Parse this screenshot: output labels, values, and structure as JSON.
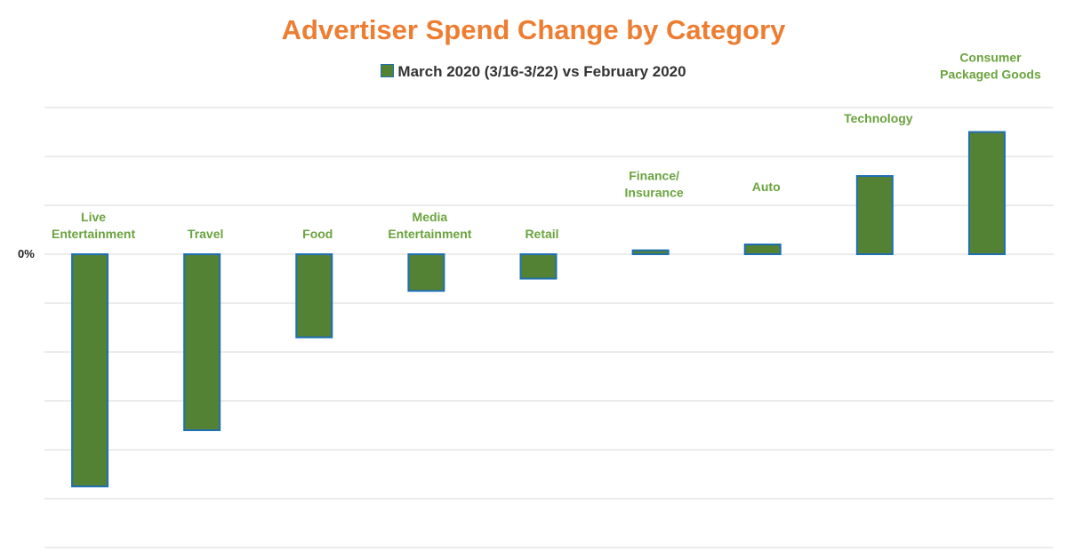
{
  "chart_data": {
    "type": "bar",
    "title": "Advertiser Spend Change by Category",
    "legend": {
      "position": "top",
      "entries": [
        "March 2020 (3/16-3/22) vs February 2020"
      ]
    },
    "categories": [
      [
        "Live",
        "Entertainment"
      ],
      [
        "Travel"
      ],
      [
        "Food"
      ],
      [
        "Media",
        "Entertainment"
      ],
      [
        "Retail"
      ],
      [
        "Finance/",
        "Insurance"
      ],
      [
        "Auto"
      ],
      [
        "Technology"
      ],
      [
        "Consumer",
        "Packaged Goods"
      ]
    ],
    "series": [
      {
        "name": "March 2020 (3/16-3/22) vs February 2020",
        "values": [
          -4.75,
          -3.6,
          -1.7,
          -0.75,
          -0.5,
          0.08,
          0.2,
          1.6,
          2.5
        ]
      }
    ],
    "ytick_labels": [
      {
        "value": 0,
        "label": "0%"
      }
    ],
    "ylim": [
      -6,
      3
    ],
    "grid": true,
    "colors": {
      "bar_fill": "#548235",
      "bar_edge": "#1f6fb4",
      "title": "#ed7d31",
      "category_label": "#6aa33e"
    }
  }
}
